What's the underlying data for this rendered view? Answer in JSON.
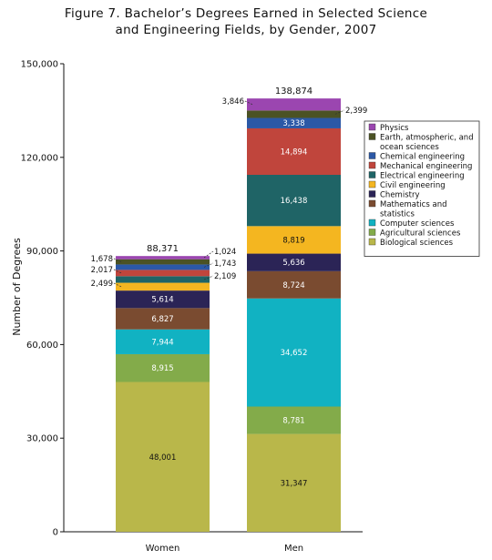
{
  "title_lines": [
    "Figure 7. Bachelor’s Degrees Earned in Selected Science",
    "and Engineering Fields, by Gender, 2007"
  ],
  "chart_data": {
    "type": "bar",
    "stacked": true,
    "title": "Figure 7. Bachelor’s Degrees Earned in Selected Science and Engineering Fields, by Gender, 2007",
    "xlabel": "",
    "ylabel": "Number of Degrees",
    "ylim": [
      0,
      150000
    ],
    "yticks": [
      "0",
      "30,000",
      "60,000",
      "90,000",
      "120,000",
      "150,000"
    ],
    "categories": [
      "Women",
      "Men"
    ],
    "totals": [
      88371,
      138874
    ],
    "total_labels": [
      "88,371",
      "138,874"
    ],
    "legend_position": "right",
    "series": [
      {
        "name": "Biological sciences",
        "color": "#b9b74a",
        "values": [
          48001,
          31347
        ],
        "labels": [
          "48,001",
          "31,347"
        ]
      },
      {
        "name": "Agricultural sciences",
        "color": "#83ab4a",
        "values": [
          8915,
          8781
        ],
        "labels": [
          "8,915",
          "8,781"
        ]
      },
      {
        "name": "Computer sciences",
        "color": "#11b2c2",
        "values": [
          7944,
          34652
        ],
        "labels": [
          "7,944",
          "34,652"
        ]
      },
      {
        "name": "Mathematics and statistics",
        "color": "#7a4b30",
        "values": [
          6827,
          8724
        ],
        "labels": [
          "6,827",
          "8,724"
        ]
      },
      {
        "name": "Chemistry",
        "color": "#2b2456",
        "values": [
          5614,
          5636
        ],
        "labels": [
          "5,614",
          "5,636"
        ]
      },
      {
        "name": "Civil engineering",
        "color": "#f4b620",
        "values": [
          2499,
          8819
        ],
        "labels": [
          "2,499",
          "8,819"
        ]
      },
      {
        "name": "Electrical engineering",
        "color": "#1f6466",
        "values": [
          2109,
          16438
        ],
        "labels": [
          "2,109",
          "16,438"
        ]
      },
      {
        "name": "Mechanical engineering",
        "color": "#c0453c",
        "values": [
          2017,
          14894
        ],
        "labels": [
          "2,017",
          "14,894"
        ]
      },
      {
        "name": "Chemical engineering",
        "color": "#2b58a6",
        "values": [
          1743,
          3338
        ],
        "labels": [
          "1,743",
          "3,338"
        ]
      },
      {
        "name": "Earth, atmospheric, and ocean sciences",
        "color": "#4b5224",
        "values": [
          1678,
          2399
        ],
        "labels": [
          "1,678",
          "2,399"
        ]
      },
      {
        "name": "Physics",
        "color": "#9b46b0",
        "values": [
          1024,
          3846
        ],
        "labels": [
          "1,024",
          "3,846"
        ]
      }
    ],
    "legend_order": [
      "Physics",
      "Earth, atmospheric, and ocean sciences",
      "Chemical engineering",
      "Mechanical engineering",
      "Electrical engineering",
      "Civil engineering",
      "Chemistry",
      "Mathematics and statistics",
      "Computer sciences",
      "Agricultural sciences",
      "Biological sciences"
    ],
    "legend_display_lines": {
      "Earth, atmospheric, and ocean sciences": [
        "Earth, atmospheric, and",
        "ocean sciences"
      ],
      "Mathematics and statistics": [
        "Mathematics and",
        "statistics"
      ]
    }
  }
}
